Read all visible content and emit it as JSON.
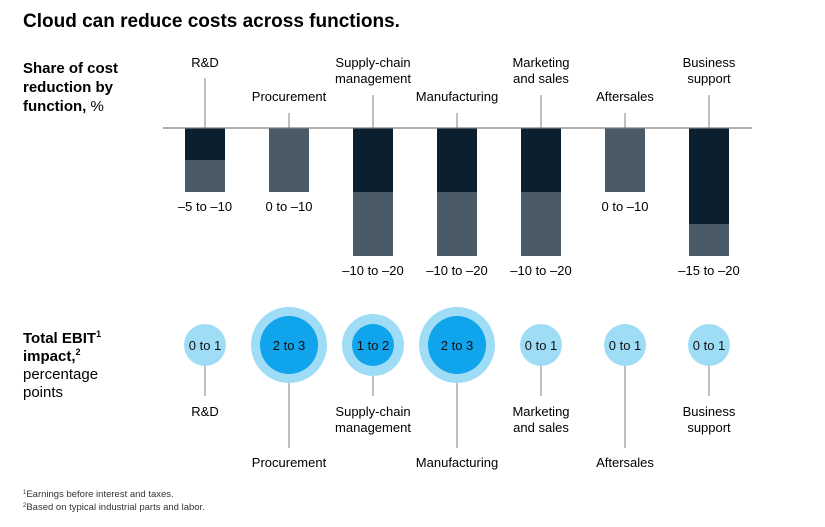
{
  "title": "Cloud can reduce costs across functions.",
  "top_label": [
    "Share of cost",
    "reduction by",
    "function, %"
  ],
  "bottom_label": {
    "bold_line1": "Total EBIT",
    "sup1": "1",
    "bold_line2": "impact,",
    "sup2": "2",
    "rest": [
      "percentage",
      "points"
    ]
  },
  "footnotes": [
    {
      "mark": "1",
      "text": "Earnings before interest and taxes."
    },
    {
      "mark": "2",
      "text": "Based on typical industrial parts and labor."
    }
  ],
  "colors": {
    "dark": "#0b1f2e",
    "gray": "#4a5a66",
    "circle_light": "#9fdcf6",
    "circle_bright": "#0fa4ec",
    "line": "#7f7f7f"
  },
  "chart_data": [
    {
      "type": "bar",
      "title": "Share of cost reduction by function, %",
      "categories": [
        [
          "R&D"
        ],
        [
          "Procurement"
        ],
        [
          "Supply-chain",
          "management"
        ],
        [
          "Manufacturing"
        ],
        [
          "Marketing",
          "and sales"
        ],
        [
          "Aftersales"
        ],
        [
          "Business",
          "support"
        ]
      ],
      "label_level": [
        "high",
        "low",
        "high",
        "low",
        "high",
        "low",
        "high"
      ],
      "range_labels": [
        "–5 to –10",
        "0 to –10",
        "–10 to –20",
        "–10 to –20",
        "–10 to –20",
        "0 to –10",
        "–15 to –20"
      ],
      "series": [
        {
          "values": [
            -5,
            0,
            -10,
            -10,
            -10,
            0,
            -15
          ]
        },
        {
          "values": [
            -10,
            -10,
            -20,
            -20,
            -20,
            -10,
            -20
          ]
        }
      ],
      "ylim": [
        -20,
        0
      ]
    },
    {
      "type": "scatter",
      "title": "Total EBIT impact, percentage points",
      "categories": [
        [
          "R&D"
        ],
        [
          "Procurement"
        ],
        [
          "Supply-chain",
          "management"
        ],
        [
          "Manufacturing"
        ],
        [
          "Marketing",
          "and sales"
        ],
        [
          "Aftersales"
        ],
        [
          "Business",
          "support"
        ]
      ],
      "label_level": [
        "high",
        "low",
        "high",
        "low",
        "high",
        "low",
        "high"
      ],
      "labels": [
        "0 to 1",
        "2 to 3",
        "1 to 2",
        "2 to 3",
        "0 to 1",
        "0 to 1",
        "0 to 1"
      ],
      "ranges": [
        [
          0,
          1
        ],
        [
          2,
          3
        ],
        [
          1,
          2
        ],
        [
          2,
          3
        ],
        [
          0,
          1
        ],
        [
          0,
          1
        ],
        [
          0,
          1
        ]
      ]
    }
  ]
}
